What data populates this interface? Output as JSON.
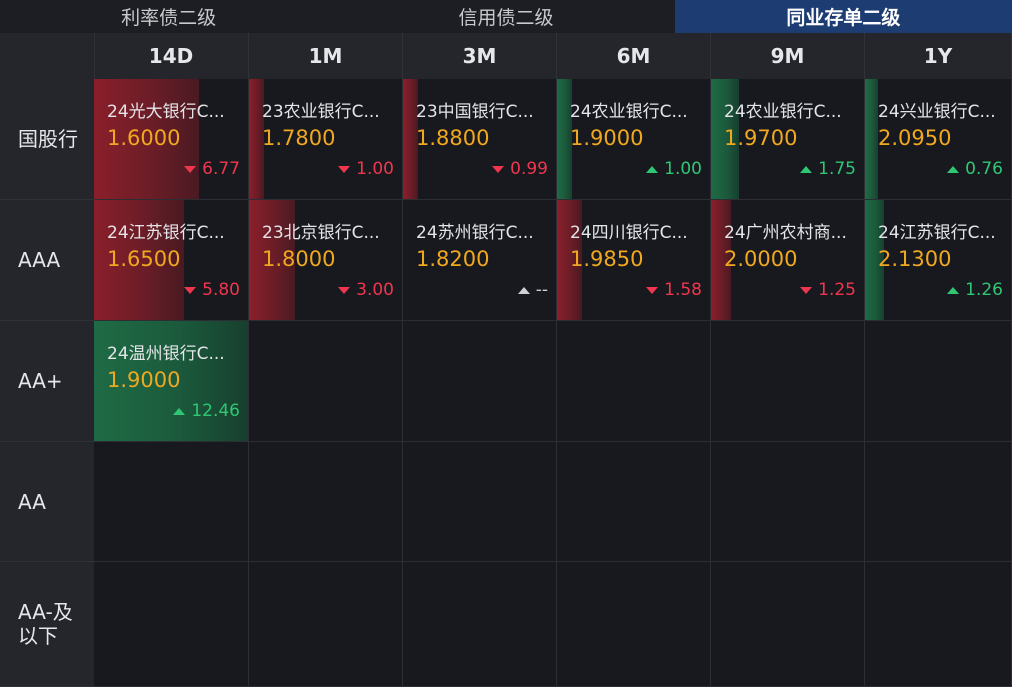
{
  "tabs": [
    {
      "label": "利率债二级",
      "active": false
    },
    {
      "label": "信用债二级",
      "active": false
    },
    {
      "label": "同业存单二级",
      "active": true
    }
  ],
  "columns": [
    "14D",
    "1M",
    "3M",
    "6M",
    "9M",
    "1Y"
  ],
  "rows": [
    "国股行",
    "AAA",
    "AA+",
    "AA",
    "AA-及以下"
  ],
  "cells": [
    [
      {
        "name": "24光大银行C...",
        "price": "1.6000",
        "change": "6.77",
        "direction": "down",
        "bar": 0.68
      },
      {
        "name": "23农业银行C...",
        "price": "1.7800",
        "change": "1.00",
        "direction": "down",
        "bar": 0.1
      },
      {
        "name": "23中国银行C...",
        "price": "1.8800",
        "change": "0.99",
        "direction": "down",
        "bar": 0.1
      },
      {
        "name": "24农业银行C...",
        "price": "1.9000",
        "change": "1.00",
        "direction": "up",
        "bar": 0.1
      },
      {
        "name": "24农业银行C...",
        "price": "1.9700",
        "change": "1.75",
        "direction": "up",
        "bar": 0.18
      },
      {
        "name": "24兴业银行C...",
        "price": "2.0950",
        "change": "0.76",
        "direction": "up",
        "bar": 0.08
      }
    ],
    [
      {
        "name": "24江苏银行C...",
        "price": "1.6500",
        "change": "5.80",
        "direction": "down",
        "bar": 0.58
      },
      {
        "name": "23北京银行C...",
        "price": "1.8000",
        "change": "3.00",
        "direction": "down",
        "bar": 0.3
      },
      {
        "name": "24苏州银行C...",
        "price": "1.8200",
        "change": "--",
        "direction": "flat",
        "bar": 0
      },
      {
        "name": "24四川银行C...",
        "price": "1.9850",
        "change": "1.58",
        "direction": "down",
        "bar": 0.16
      },
      {
        "name": "24广州农村商...",
        "price": "2.0000",
        "change": "1.25",
        "direction": "down",
        "bar": 0.13
      },
      {
        "name": "24江苏银行C...",
        "price": "2.1300",
        "change": "1.26",
        "direction": "up",
        "bar": 0.13
      }
    ],
    [
      {
        "name": "24温州银行C...",
        "price": "1.9000",
        "change": "12.46",
        "direction": "up",
        "bar": 1.0
      },
      null,
      null,
      null,
      null,
      null
    ],
    [
      null,
      null,
      null,
      null,
      null,
      null
    ],
    [
      null,
      null,
      null,
      null,
      null,
      null
    ]
  ]
}
